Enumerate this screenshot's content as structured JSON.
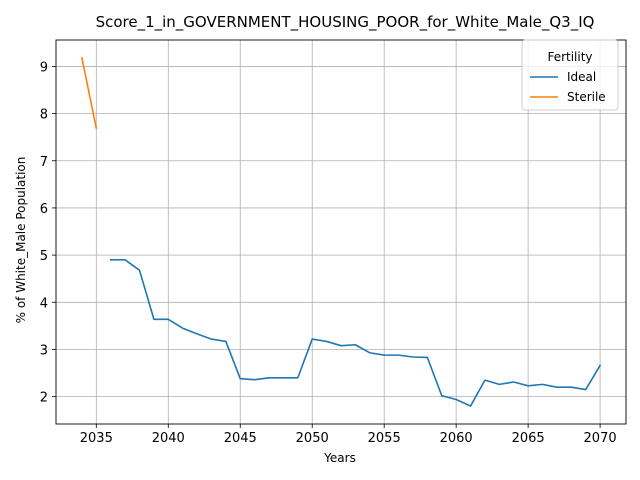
{
  "chart_data": {
    "type": "line",
    "title": "Score_1_in_GOVERNMENT_HOUSING_POOR_for_White_Male_Q3_IQ",
    "xlabel": "Years",
    "ylabel": "% of White_Male Population",
    "xlim": [
      2032.2,
      2071.8
    ],
    "ylim": [
      1.42,
      9.56
    ],
    "x_ticks": [
      2035,
      2040,
      2045,
      2050,
      2055,
      2060,
      2065,
      2070
    ],
    "y_ticks": [
      2,
      3,
      4,
      5,
      6,
      7,
      8,
      9
    ],
    "grid": true,
    "legend": {
      "title": "Fertility",
      "placement": "top-right"
    },
    "series": [
      {
        "name": "Ideal",
        "color": "#1f77b4",
        "x": [
          2036,
          2037,
          2038,
          2039,
          2040,
          2041,
          2042,
          2043,
          2044,
          2045,
          2046,
          2047,
          2048,
          2049,
          2050,
          2051,
          2052,
          2053,
          2054,
          2055,
          2056,
          2057,
          2058,
          2059,
          2060,
          2061,
          2062,
          2063,
          2064,
          2065,
          2066,
          2067,
          2068,
          2069,
          2070
        ],
        "y": [
          4.9,
          4.9,
          4.68,
          3.64,
          3.64,
          3.45,
          3.33,
          3.22,
          3.17,
          2.38,
          2.36,
          2.4,
          2.4,
          2.4,
          3.22,
          3.17,
          3.08,
          3.1,
          2.93,
          2.88,
          2.88,
          2.84,
          2.83,
          2.02,
          1.94,
          1.8,
          2.35,
          2.26,
          2.31,
          2.23,
          2.26,
          2.2,
          2.2,
          2.15,
          2.66
        ]
      },
      {
        "name": "Sterile",
        "color": "#ff7f0e",
        "x": [
          2034,
          2035
        ],
        "y": [
          9.18,
          7.69
        ]
      }
    ]
  }
}
